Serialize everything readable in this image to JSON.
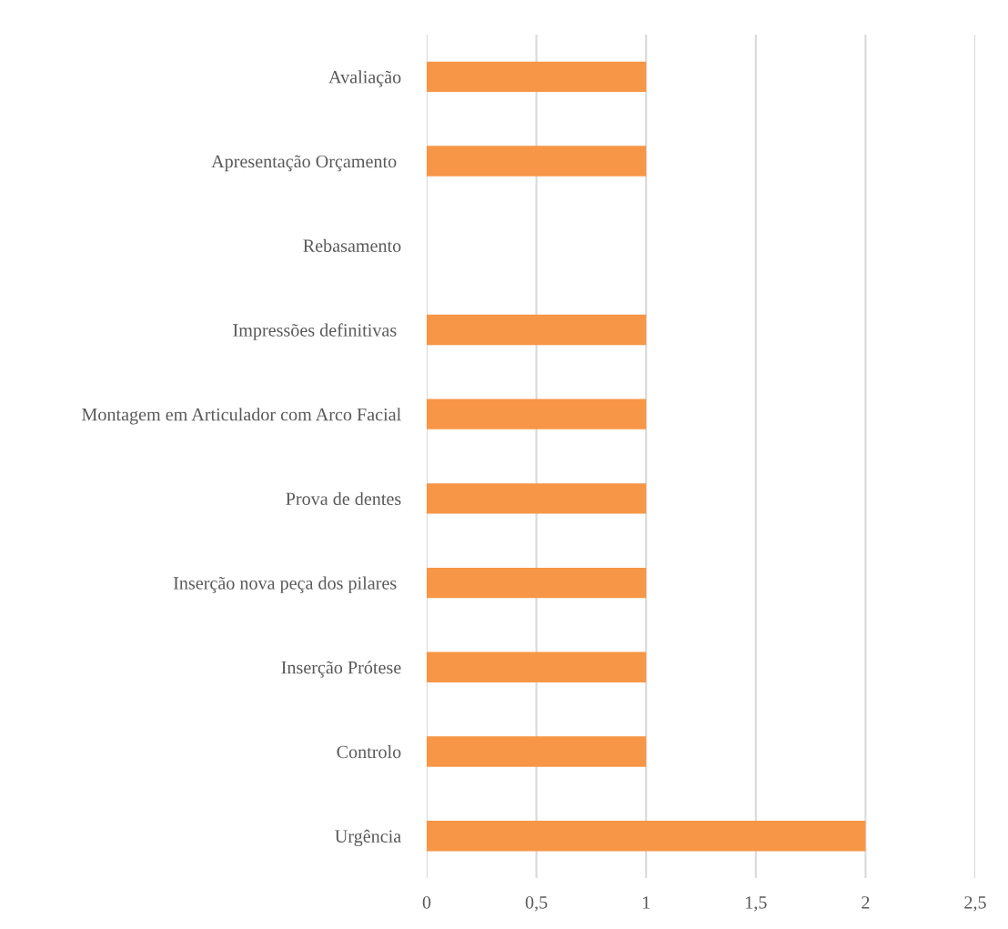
{
  "chart_data": {
    "type": "bar",
    "orientation": "horizontal",
    "categories": [
      "Avaliação",
      "Apresentação Orçamento ",
      "Rebasamento",
      "Impressões definitivas ",
      "Montagem em Articulador com Arco Facial",
      "Prova de dentes",
      "Inserção nova peça dos pilares ",
      "Inserção Prótese",
      "Controlo",
      "Urgência"
    ],
    "values": [
      1,
      1,
      0,
      1,
      1,
      1,
      1,
      1,
      1,
      2
    ],
    "color": "#f79646",
    "xlim": [
      0,
      2.5
    ],
    "xticks": [
      0,
      {
        "value": 0.5,
        "label": "0,5"
      },
      1,
      {
        "value": 1.5,
        "label": "1,5"
      },
      2,
      {
        "value": 2.5,
        "label": "2,5"
      }
    ],
    "grid": "x",
    "legend": false
  }
}
